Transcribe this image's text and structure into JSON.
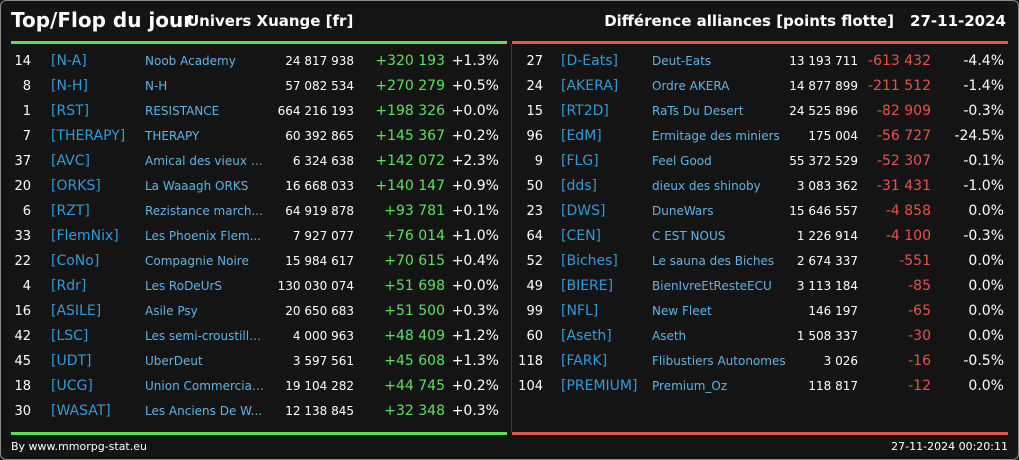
{
  "header": {
    "title": "Top/Flop du jour",
    "universe": "Univers Xuange [fr]",
    "subtitle": "Différence alliances [points flotte]",
    "date": "27-11-2024"
  },
  "colors": {
    "gain": "#5ee05f",
    "loss": "#e5534b",
    "tag": "#2f9bd8",
    "name": "#61b3e6"
  },
  "top": [
    {
      "rank": "14",
      "tag": "[N-A]",
      "name": "Noob Academy",
      "points": "24 817 938",
      "diff": "+320 193",
      "pct": "+1.3%"
    },
    {
      "rank": "8",
      "tag": "[N-H]",
      "name": "N-H",
      "points": "57 082 534",
      "diff": "+270 279",
      "pct": "+0.5%"
    },
    {
      "rank": "1",
      "tag": "[RST]",
      "name": "RESISTANCE",
      "points": "664 216 193",
      "diff": "+198 326",
      "pct": "+0.0%"
    },
    {
      "rank": "7",
      "tag": "[THERAPY]",
      "name": "THERAPY",
      "points": "60 392 865",
      "diff": "+145 367",
      "pct": "+0.2%"
    },
    {
      "rank": "37",
      "tag": "[AVC]",
      "name": "Amical des vieux con",
      "points": "6 324 638",
      "diff": "+142 072",
      "pct": "+2.3%"
    },
    {
      "rank": "20",
      "tag": "[ORKS]",
      "name": "La Waaagh ORKS",
      "points": "16 668 033",
      "diff": "+140 147",
      "pct": "+0.9%"
    },
    {
      "rank": "6",
      "tag": "[RZT]",
      "name": "Rezistance march...",
      "points": "64 919 878",
      "diff": "+93 781",
      "pct": "+0.1%"
    },
    {
      "rank": "33",
      "tag": "[FlemNix]",
      "name": "Les Phoenix Flem...",
      "points": "7 927 077",
      "diff": "+76 014",
      "pct": "+1.0%"
    },
    {
      "rank": "22",
      "tag": "[CoNo]",
      "name": "Compagnie Noire",
      "points": "15 984 617",
      "diff": "+70 615",
      "pct": "+0.4%"
    },
    {
      "rank": "4",
      "tag": "[Rdr]",
      "name": "Les RoDeUrS",
      "points": "130 030 074",
      "diff": "+51 698",
      "pct": "+0.0%"
    },
    {
      "rank": "16",
      "tag": "[ASILE]",
      "name": "Asile Psy",
      "points": "20 650 683",
      "diff": "+51 500",
      "pct": "+0.3%"
    },
    {
      "rank": "42",
      "tag": "[LSC]",
      "name": "Les semi-croustilla...",
      "points": "4 000 963",
      "diff": "+48 409",
      "pct": "+1.2%"
    },
    {
      "rank": "45",
      "tag": "[UDT]",
      "name": "UberDeut",
      "points": "3 597 561",
      "diff": "+45 608",
      "pct": "+1.3%"
    },
    {
      "rank": "18",
      "tag": "[UCG]",
      "name": "Union Commerciale...",
      "points": "19 104 282",
      "diff": "+44 745",
      "pct": "+0.2%"
    },
    {
      "rank": "30",
      "tag": "[WASAT]",
      "name": "Les Anciens De W...",
      "points": "12 138 845",
      "diff": "+32 348",
      "pct": "+0.3%"
    }
  ],
  "flop": [
    {
      "rank": "27",
      "tag": "[D-Eats]",
      "name": "Deut-Eats",
      "points": "13 193 711",
      "diff": "-613 432",
      "pct": "-4.4%"
    },
    {
      "rank": "24",
      "tag": "[AKERA]",
      "name": "Ordre AKERA",
      "points": "14 877 899",
      "diff": "-211 512",
      "pct": "-1.4%"
    },
    {
      "rank": "15",
      "tag": "[RT2D]",
      "name": "RaTs Du Desert",
      "points": "24 525 896",
      "diff": "-82 909",
      "pct": "-0.3%"
    },
    {
      "rank": "96",
      "tag": "[EdM]",
      "name": "Ermitage des miniers",
      "points": "175 004",
      "diff": "-56 727",
      "pct": "-24.5%"
    },
    {
      "rank": "9",
      "tag": "[FLG]",
      "name": "Feel Good",
      "points": "55 372 529",
      "diff": "-52 307",
      "pct": "-0.1%"
    },
    {
      "rank": "50",
      "tag": "[dds]",
      "name": "dieux des shinoby",
      "points": "3 083 362",
      "diff": "-31 431",
      "pct": "-1.0%"
    },
    {
      "rank": "23",
      "tag": "[DWS]",
      "name": "DuneWars",
      "points": "15 646 557",
      "diff": "-4 858",
      "pct": "0.0%"
    },
    {
      "rank": "64",
      "tag": "[CEN]",
      "name": "C EST NOUS",
      "points": "1 226 914",
      "diff": "-4 100",
      "pct": "-0.3%"
    },
    {
      "rank": "52",
      "tag": "[Biches]",
      "name": "Le sauna des Biches",
      "points": "2 674 337",
      "diff": "-551",
      "pct": "0.0%"
    },
    {
      "rank": "49",
      "tag": "[BIERE]",
      "name": "BienIvreEtResteECU",
      "points": "3 113 184",
      "diff": "-85",
      "pct": "0.0%"
    },
    {
      "rank": "99",
      "tag": "[NFL]",
      "name": "New Fleet",
      "points": "146 197",
      "diff": "-65",
      "pct": "0.0%"
    },
    {
      "rank": "60",
      "tag": "[Aseth]",
      "name": "Aseth",
      "points": "1 508 337",
      "diff": "-30",
      "pct": "0.0%"
    },
    {
      "rank": "118",
      "tag": "[FARK]",
      "name": "Flibustiers Autonomes",
      "points": "3 026",
      "diff": "-16",
      "pct": "-0.5%"
    },
    {
      "rank": "104",
      "tag": "[PREMIUM]",
      "name": "Premium_Oz",
      "points": "118 817",
      "diff": "-12",
      "pct": "0.0%"
    }
  ],
  "footer": {
    "credit": "By www.mmorpg-stat.eu",
    "timestamp": "27-11-2024 00:20:11"
  }
}
